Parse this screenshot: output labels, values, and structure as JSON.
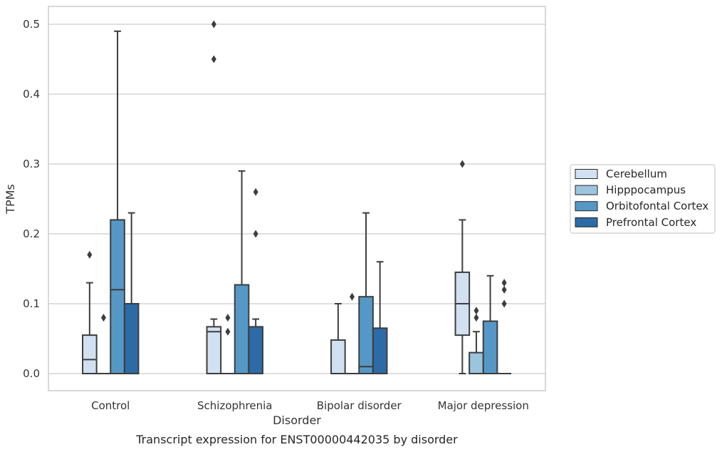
{
  "chart_data": {
    "type": "box",
    "xlabel": "Disorder",
    "ylabel": "TPMs",
    "caption": "Transcript expression for ENST00000442035 by disorder",
    "ylim": [
      -0.025,
      0.525
    ],
    "yticks": [
      0.0,
      0.1,
      0.2,
      0.3,
      0.4,
      0.5
    ],
    "ytick_labels": [
      "0.0",
      "0.1",
      "0.2",
      "0.3",
      "0.4",
      "0.5"
    ],
    "grid": "horizontal",
    "legend_position": "right",
    "categories": [
      "Control",
      "Schizophrenia",
      "Bipolar disorder",
      "Major depression"
    ],
    "series": [
      {
        "name": "Cerebellum",
        "color": "#d1e1f1",
        "boxes": [
          {
            "min": 0.0,
            "q1": 0.0,
            "median": 0.02,
            "q3": 0.055,
            "max": 0.13,
            "outliers": [
              0.17
            ]
          },
          {
            "min": 0.0,
            "q1": 0.0,
            "median": 0.06,
            "q3": 0.067,
            "max": 0.078,
            "outliers": [
              0.45,
              0.5
            ]
          },
          {
            "min": 0.0,
            "q1": 0.0,
            "median": 0.0,
            "q3": 0.048,
            "max": 0.1,
            "outliers": []
          },
          {
            "min": 0.0,
            "q1": 0.055,
            "median": 0.1,
            "q3": 0.145,
            "max": 0.22,
            "outliers": [
              0.3
            ]
          }
        ]
      },
      {
        "name": "Hipppocampus",
        "color": "#9bc4dd",
        "boxes": [
          {
            "min": 0.0,
            "q1": 0.0,
            "median": 0.0,
            "q3": 0.0,
            "max": 0.0,
            "outliers": [
              0.08
            ]
          },
          {
            "min": 0.0,
            "q1": 0.0,
            "median": 0.0,
            "q3": 0.0,
            "max": 0.0,
            "outliers": [
              0.06,
              0.08
            ]
          },
          {
            "min": 0.0,
            "q1": 0.0,
            "median": 0.0,
            "q3": 0.0,
            "max": 0.0,
            "outliers": [
              0.11
            ]
          },
          {
            "min": 0.0,
            "q1": 0.0,
            "median": 0.0,
            "q3": 0.03,
            "max": 0.06,
            "outliers": [
              0.08,
              0.09
            ]
          }
        ]
      },
      {
        "name": "Orbitofontal Cortex",
        "color": "#5598c6",
        "boxes": [
          {
            "min": 0.0,
            "q1": 0.0,
            "median": 0.12,
            "q3": 0.22,
            "max": 0.49,
            "outliers": []
          },
          {
            "min": 0.0,
            "q1": 0.0,
            "median": 0.0,
            "q3": 0.127,
            "max": 0.29,
            "outliers": []
          },
          {
            "min": 0.0,
            "q1": 0.0,
            "median": 0.01,
            "q3": 0.11,
            "max": 0.23,
            "outliers": []
          },
          {
            "min": 0.0,
            "q1": 0.0,
            "median": 0.0,
            "q3": 0.075,
            "max": 0.14,
            "outliers": []
          }
        ]
      },
      {
        "name": "Prefrontal Cortex",
        "color": "#2c6ba5",
        "boxes": [
          {
            "min": 0.0,
            "q1": 0.0,
            "median": 0.0,
            "q3": 0.1,
            "max": 0.23,
            "outliers": []
          },
          {
            "min": 0.0,
            "q1": 0.0,
            "median": 0.0,
            "q3": 0.067,
            "max": 0.078,
            "outliers": [
              0.2,
              0.26
            ]
          },
          {
            "min": 0.0,
            "q1": 0.0,
            "median": 0.0,
            "q3": 0.065,
            "max": 0.16,
            "outliers": []
          },
          {
            "min": 0.0,
            "q1": 0.0,
            "median": 0.0,
            "q3": 0.0,
            "max": 0.0,
            "outliers": [
              0.1,
              0.12,
              0.13
            ]
          }
        ]
      }
    ]
  },
  "colors": {
    "edge": "#3d3d3d",
    "grid": "#cccccc",
    "frame": "#cccccc",
    "text": "#333333"
  }
}
